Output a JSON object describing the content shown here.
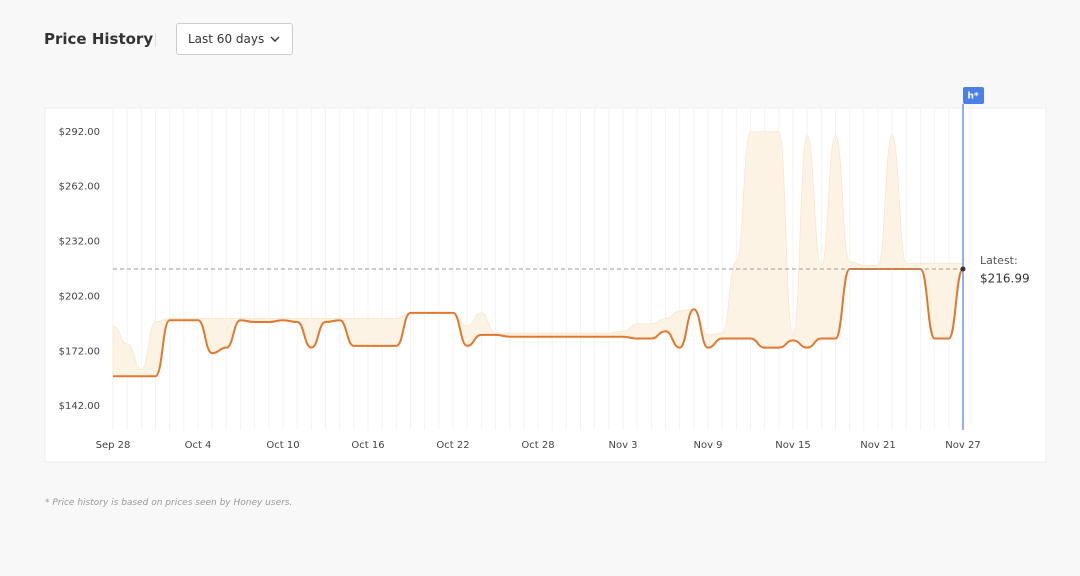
{
  "header": {
    "title": "Price History",
    "range_select": "Last 60 days"
  },
  "chart_data": {
    "type": "line",
    "categories": [
      "Sep 28",
      null,
      null,
      null,
      null,
      null,
      "Oct 4",
      null,
      null,
      null,
      null,
      null,
      "Oct 10",
      null,
      null,
      null,
      null,
      null,
      "Oct 16",
      null,
      null,
      null,
      null,
      null,
      "Oct 22",
      null,
      null,
      null,
      null,
      null,
      "Oct 28",
      null,
      null,
      null,
      null,
      null,
      "Nov 3",
      null,
      null,
      null,
      null,
      null,
      "Nov 9",
      null,
      null,
      null,
      null,
      null,
      "Nov 15",
      null,
      null,
      null,
      null,
      null,
      "Nov 21",
      null,
      null,
      null,
      null,
      null,
      "Nov 27"
    ],
    "series": [
      {
        "color": "#e0782f",
        "values": [
          158.4,
          158.4,
          158.4,
          158.4,
          189,
          189,
          189,
          171,
          174,
          189,
          188,
          188,
          189,
          188,
          174,
          188,
          189,
          175,
          175,
          175,
          175,
          193,
          193,
          193,
          193,
          175,
          181,
          181,
          180,
          180,
          180,
          180,
          180,
          180,
          180,
          180,
          180,
          179,
          179,
          183,
          174,
          195,
          174,
          179,
          179,
          179,
          174,
          174,
          178,
          174,
          179,
          179,
          216.99,
          216.99,
          216.99,
          216.99,
          216.99,
          216.99,
          179,
          179,
          216.99
        ]
      },
      {
        "type": "area",
        "color": "#fdf3e4",
        "values": [
          186,
          176,
          162,
          188,
          190,
          190,
          190,
          190,
          190,
          190,
          190,
          190,
          190,
          190,
          190,
          190,
          190,
          190,
          190,
          190,
          190,
          193,
          193,
          193,
          193,
          186,
          193,
          182,
          182,
          182,
          182,
          182,
          182,
          182,
          182,
          182,
          183,
          187,
          187,
          190,
          194,
          195,
          181,
          182,
          221,
          292,
          292,
          292,
          181,
          290,
          219,
          290,
          221,
          219,
          219,
          290,
          220,
          220,
          220,
          220,
          220
        ]
      }
    ],
    "ylim": [
      129,
      305
    ],
    "yticks": [
      {
        "value": 142,
        "label": "$142.00"
      },
      {
        "value": 172,
        "label": "$172.00"
      },
      {
        "value": 202,
        "label": "$202.00"
      },
      {
        "value": 232,
        "label": "$232.00"
      },
      {
        "value": 262,
        "label": "$262.00"
      },
      {
        "value": 292,
        "label": "$292.00"
      }
    ],
    "latest": {
      "label": "Latest:",
      "value": 216.99,
      "value_label": "$216.99"
    }
  },
  "footnote": "* Price history is based on prices seen by Honey users."
}
